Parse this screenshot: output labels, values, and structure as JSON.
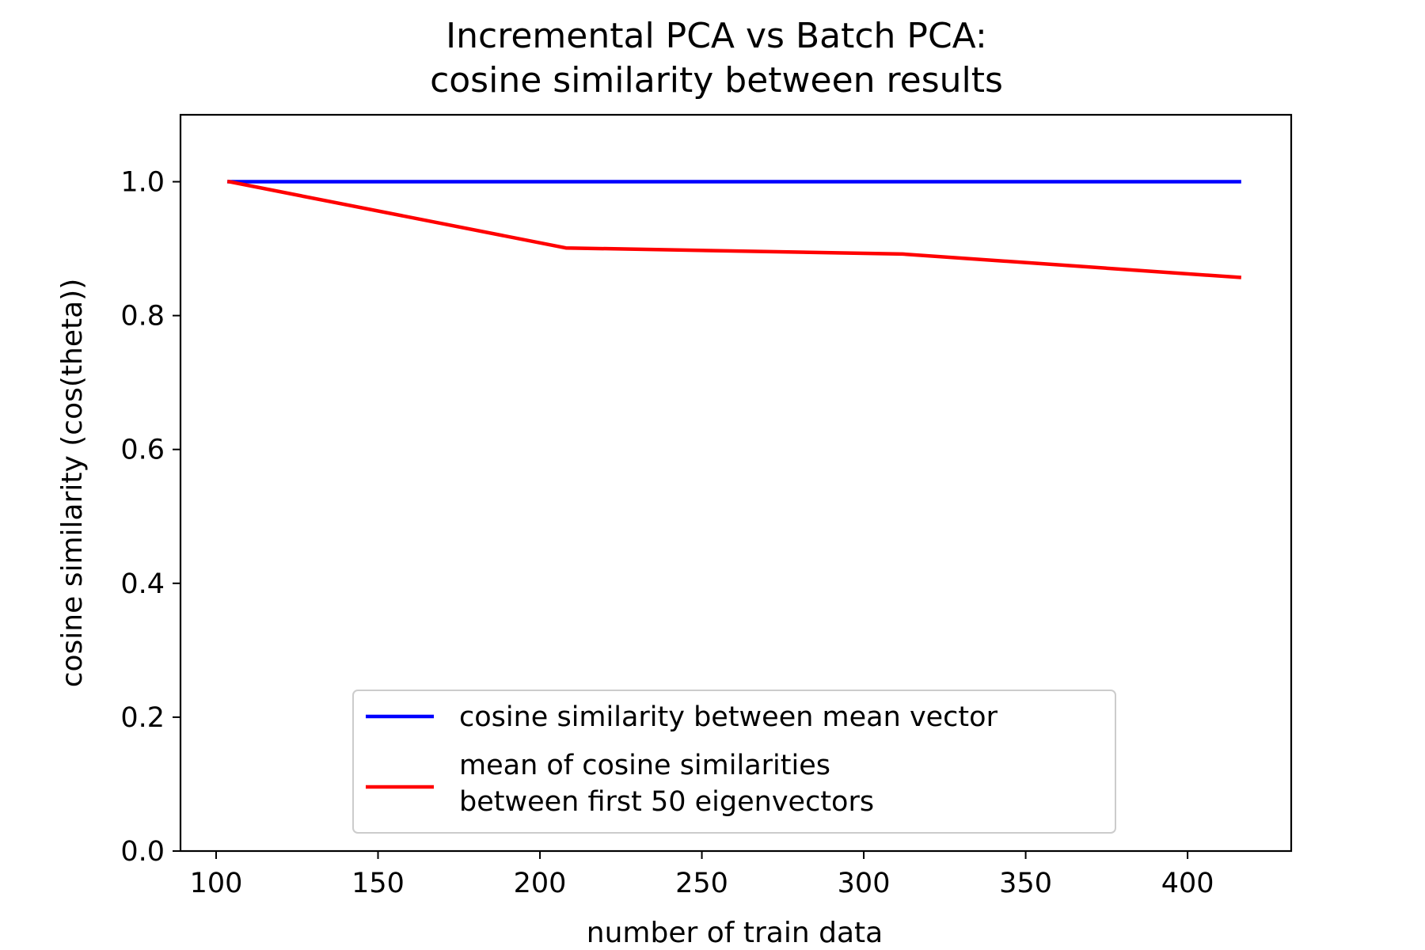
{
  "chart_data": {
    "type": "line",
    "title_lines": [
      "Incremental PCA vs Batch PCA:",
      "cosine similarity between results"
    ],
    "xlabel": "number of train data",
    "ylabel": "cosine similarity (cos(theta))",
    "xlim": [
      89,
      432
    ],
    "ylim": [
      0.0,
      1.1
    ],
    "xticks": [
      100,
      150,
      200,
      250,
      300,
      350,
      400
    ],
    "yticks": [
      0.0,
      0.2,
      0.4,
      0.6,
      0.8,
      1.0
    ],
    "xtick_labels": [
      "100",
      "150",
      "200",
      "250",
      "300",
      "350",
      "400"
    ],
    "ytick_labels": [
      "0.0",
      "0.2",
      "0.4",
      "0.6",
      "0.8",
      "1.0"
    ],
    "grid": false,
    "legend_position": "lower-center",
    "x": [
      104,
      208,
      312,
      416
    ],
    "series": [
      {
        "name_lines": [
          "cosine similarity between mean vector"
        ],
        "color": "#0000ff",
        "values": [
          1.0,
          1.0,
          1.0,
          1.0
        ]
      },
      {
        "name_lines": [
          "mean of cosine similarities",
          "between first 50 eigenvectors"
        ],
        "color": "#ff0000",
        "values": [
          1.0,
          0.901,
          0.892,
          0.857
        ]
      }
    ]
  }
}
